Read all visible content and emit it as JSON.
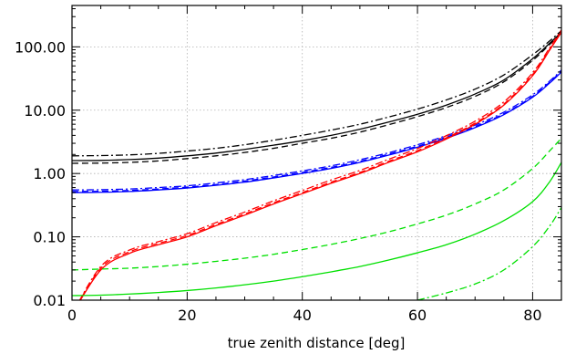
{
  "chart_data": {
    "type": "line",
    "title": "",
    "xlabel": "true zenith distance [deg]",
    "ylabel": "",
    "xlim": [
      0,
      85
    ],
    "ylim": [
      0.01,
      450
    ],
    "yscale": "log",
    "grid": true,
    "legend": "none",
    "x_ticks": [
      0,
      20,
      40,
      60,
      80
    ],
    "x_tick_labels": [
      "0",
      "20",
      "40",
      "60",
      "80"
    ],
    "y_ticks": [
      0.01,
      0.1,
      1,
      10,
      100
    ],
    "y_tick_labels": [
      "0.01",
      "0.10",
      "1.00",
      "10.00",
      "100.00"
    ],
    "x": [
      0,
      5,
      10,
      15,
      20,
      25,
      30,
      35,
      40,
      45,
      50,
      55,
      60,
      65,
      70,
      75,
      80,
      83,
      85
    ],
    "series": [
      {
        "color": "#000000",
        "style": "solid",
        "values": [
          1.6,
          1.61,
          1.66,
          1.75,
          1.9,
          2.1,
          2.4,
          2.8,
          3.3,
          4.0,
          5.0,
          6.5,
          8.6,
          12.0,
          18.0,
          30.0,
          65.0,
          115.0,
          170.0
        ]
      },
      {
        "color": "#000000",
        "style": "dashed",
        "values": [
          1.45,
          1.46,
          1.5,
          1.58,
          1.72,
          1.9,
          2.15,
          2.5,
          3.0,
          3.6,
          4.5,
          5.9,
          7.9,
          11.0,
          16.5,
          28.0,
          61.0,
          110.0,
          165.0
        ]
      },
      {
        "color": "#000000",
        "style": "dashdot",
        "values": [
          1.9,
          1.92,
          1.97,
          2.08,
          2.26,
          2.5,
          2.85,
          3.35,
          4.0,
          4.85,
          6.0,
          7.8,
          10.4,
          14.5,
          21.5,
          36.0,
          75.0,
          125.0,
          180.0
        ]
      },
      {
        "color": "#0000ff",
        "style": "solid",
        "values": [
          0.5,
          0.505,
          0.52,
          0.55,
          0.59,
          0.65,
          0.73,
          0.85,
          1.0,
          1.2,
          1.5,
          1.95,
          2.6,
          3.6,
          5.3,
          8.5,
          16.0,
          27.0,
          40.0
        ]
      },
      {
        "color": "#0000ff",
        "style": "dashed",
        "values": [
          0.52,
          0.525,
          0.54,
          0.57,
          0.61,
          0.67,
          0.76,
          0.88,
          1.04,
          1.25,
          1.56,
          2.02,
          2.7,
          3.75,
          5.5,
          8.8,
          16.5,
          28.0,
          41.0
        ]
      },
      {
        "color": "#0000ff",
        "style": "dashdot",
        "values": [
          0.55,
          0.555,
          0.57,
          0.6,
          0.64,
          0.71,
          0.8,
          0.93,
          1.1,
          1.32,
          1.65,
          2.13,
          2.85,
          3.95,
          5.8,
          9.3,
          17.5,
          29.0,
          43.0
        ]
      },
      {
        "color": "#ff0000",
        "style": "solid",
        "values": [
          0.006,
          0.03,
          0.055,
          0.075,
          0.1,
          0.15,
          0.22,
          0.33,
          0.48,
          0.7,
          1.0,
          1.5,
          2.2,
          3.5,
          6.0,
          12.0,
          35.0,
          90.0,
          170.0
        ]
      },
      {
        "color": "#ff0000",
        "style": "dashed",
        "values": [
          0.006,
          0.032,
          0.058,
          0.079,
          0.105,
          0.157,
          0.23,
          0.345,
          0.5,
          0.73,
          1.04,
          1.56,
          2.3,
          3.65,
          6.25,
          12.5,
          36.5,
          93.0,
          175.0
        ]
      },
      {
        "color": "#ff0000",
        "style": "dashdot",
        "values": [
          0.006,
          0.034,
          0.062,
          0.084,
          0.112,
          0.168,
          0.246,
          0.37,
          0.54,
          0.79,
          1.12,
          1.68,
          2.48,
          3.95,
          6.7,
          13.5,
          39.0,
          98.0,
          185.0
        ]
      },
      {
        "color": "#00e000",
        "style": "solid",
        "values": [
          0.0118,
          0.012,
          0.0125,
          0.0132,
          0.0142,
          0.0156,
          0.0175,
          0.02,
          0.0235,
          0.028,
          0.034,
          0.043,
          0.056,
          0.075,
          0.11,
          0.18,
          0.36,
          0.75,
          1.5
        ]
      },
      {
        "color": "#00e000",
        "style": "dashed",
        "values": [
          0.03,
          0.031,
          0.032,
          0.034,
          0.037,
          0.041,
          0.046,
          0.053,
          0.063,
          0.076,
          0.094,
          0.12,
          0.16,
          0.22,
          0.33,
          0.55,
          1.2,
          2.3,
          3.6
        ]
      },
      {
        "color": "#00e000",
        "style": "dashdot",
        "x": [
          60,
          65,
          70,
          75,
          80,
          83,
          85
        ],
        "values": [
          0.01,
          0.013,
          0.018,
          0.03,
          0.07,
          0.15,
          0.29
        ]
      }
    ]
  }
}
